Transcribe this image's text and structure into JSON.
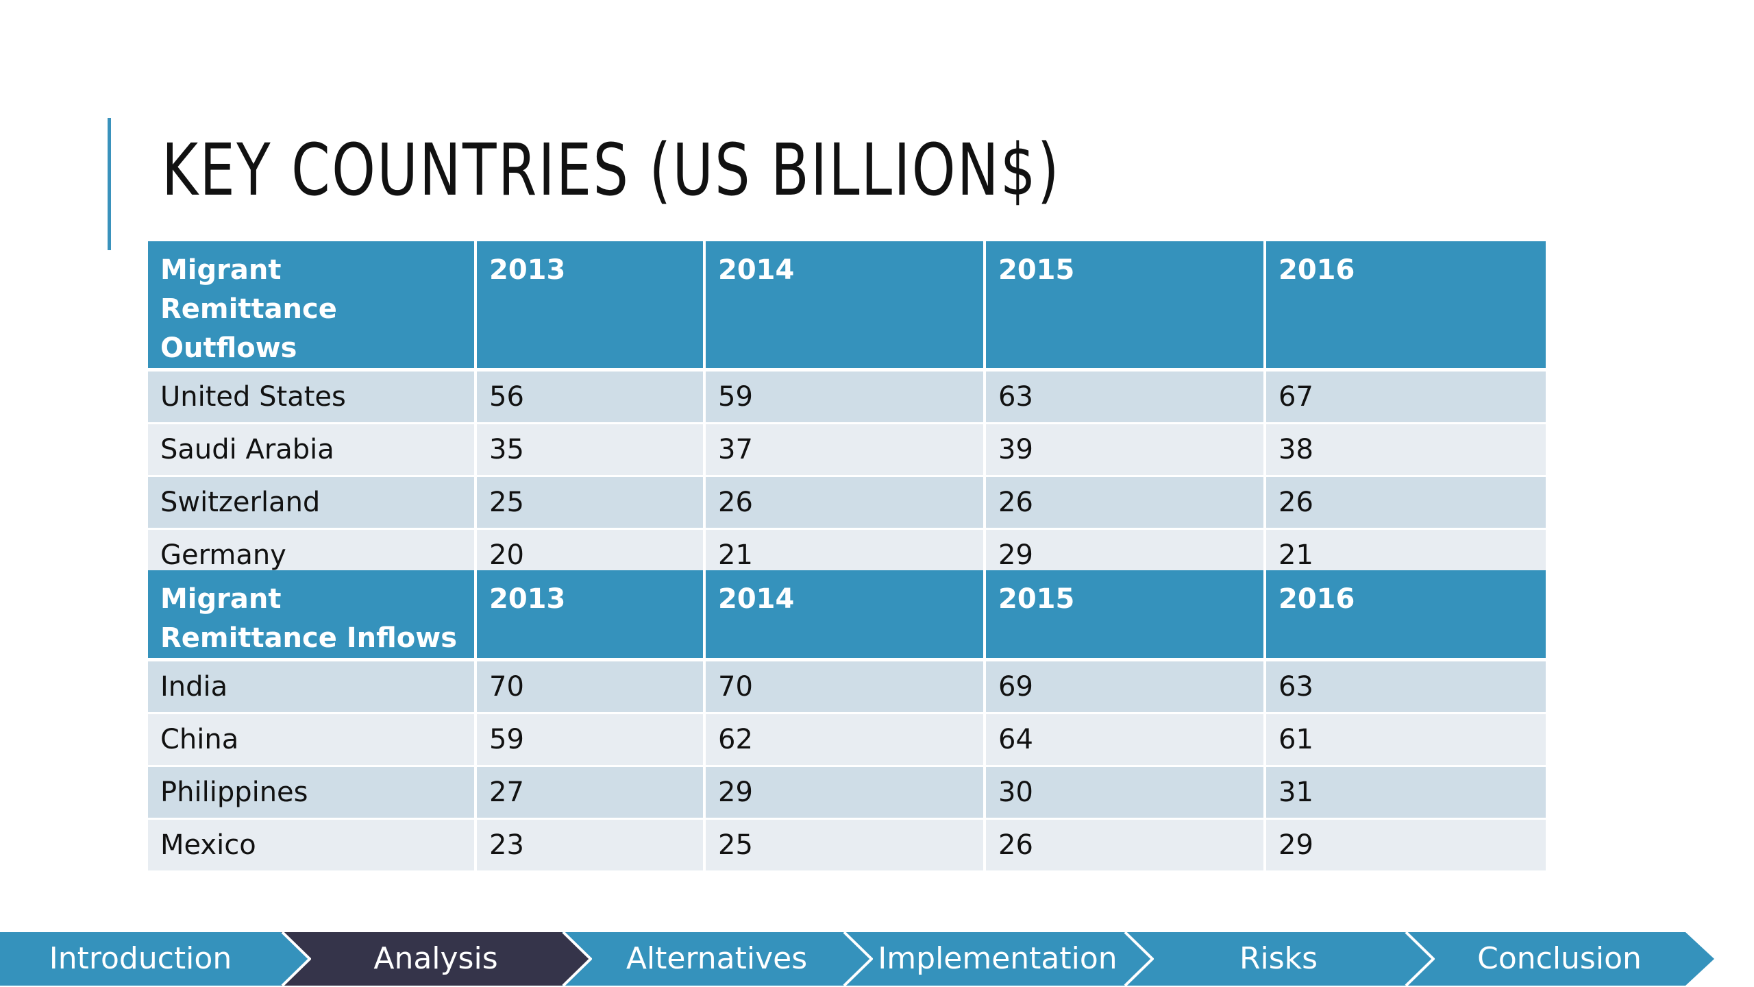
{
  "slide": {
    "title": "KEY COUNTRIES (US BILLION$)"
  },
  "tables": [
    {
      "header": [
        "Migrant Remittance Outflows",
        "2013",
        "2014",
        "2015",
        "2016"
      ],
      "rows": [
        [
          "United States",
          "56",
          "59",
          "63",
          "67"
        ],
        [
          "Saudi Arabia",
          "35",
          "37",
          "39",
          "38"
        ],
        [
          "Switzerland",
          "25",
          "26",
          "26",
          "26"
        ],
        [
          "Germany",
          "20",
          "21",
          "29",
          "21"
        ]
      ]
    },
    {
      "header": [
        "Migrant Remittance Inflows",
        "2013",
        "2014",
        "2015",
        "2016"
      ],
      "rows": [
        [
          "India",
          "70",
          "70",
          "69",
          "63"
        ],
        [
          "China",
          "59",
          "62",
          "64",
          "61"
        ],
        [
          "Philippines",
          "27",
          "29",
          "30",
          "31"
        ],
        [
          "Mexico",
          "23",
          "25",
          "26",
          "29"
        ]
      ]
    }
  ],
  "nav": {
    "items": [
      {
        "label": "Introduction",
        "active": false
      },
      {
        "label": "Analysis",
        "active": true
      },
      {
        "label": "Alternatives",
        "active": false
      },
      {
        "label": "Implementation",
        "active": false
      },
      {
        "label": "Risks",
        "active": false
      },
      {
        "label": "Conclusion",
        "active": false
      }
    ]
  },
  "colors": {
    "accent": "#3592bc",
    "active_nav": "#35344a",
    "row_odd": "#cfdde7",
    "row_even": "#e8edf2",
    "title_text": "#111111"
  }
}
